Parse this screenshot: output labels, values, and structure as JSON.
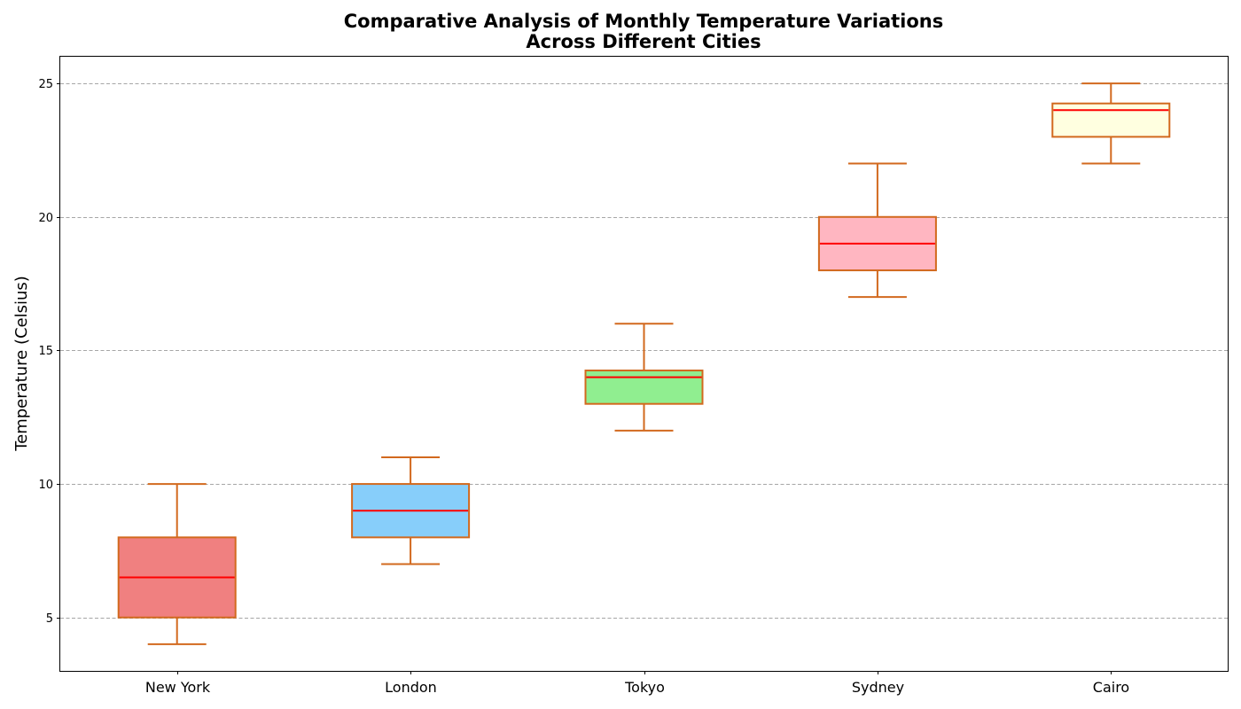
{
  "chart_data": {
    "type": "box",
    "title": [
      "Comparative Analysis of Monthly Temperature Variations",
      "Across Different Cities"
    ],
    "xlabel": "",
    "ylabel": "Temperature (Celsius)",
    "ylim": [
      3,
      26
    ],
    "yticks": [
      5,
      10,
      15,
      20,
      25
    ],
    "grid": {
      "axis": "y",
      "style": "dashed"
    },
    "categories": [
      "New York",
      "London",
      "Tokyo",
      "Sydney",
      "Cairo"
    ],
    "boxes": [
      {
        "name": "New York",
        "whisker_low": 4,
        "q1": 5,
        "median": 6.5,
        "q3": 8,
        "whisker_high": 10,
        "fill": "#f08080"
      },
      {
        "name": "London",
        "whisker_low": 7,
        "q1": 8,
        "median": 9,
        "q3": 10,
        "whisker_high": 11,
        "fill": "#87cefa"
      },
      {
        "name": "Tokyo",
        "whisker_low": 12,
        "q1": 13,
        "median": 14,
        "q3": 14.25,
        "whisker_high": 16,
        "fill": "#90ee90"
      },
      {
        "name": "Sydney",
        "whisker_low": 17,
        "q1": 18,
        "median": 19,
        "q3": 20,
        "whisker_high": 22,
        "fill": "#ffb6c1"
      },
      {
        "name": "Cairo",
        "whisker_low": 22,
        "q1": 23,
        "median": 24,
        "q3": 24.25,
        "whisker_high": 25,
        "fill": "#ffffe0"
      }
    ],
    "colors": {
      "box_edge": "#d2691e",
      "whisker": "#d2691e",
      "median": "#ff0000"
    }
  }
}
